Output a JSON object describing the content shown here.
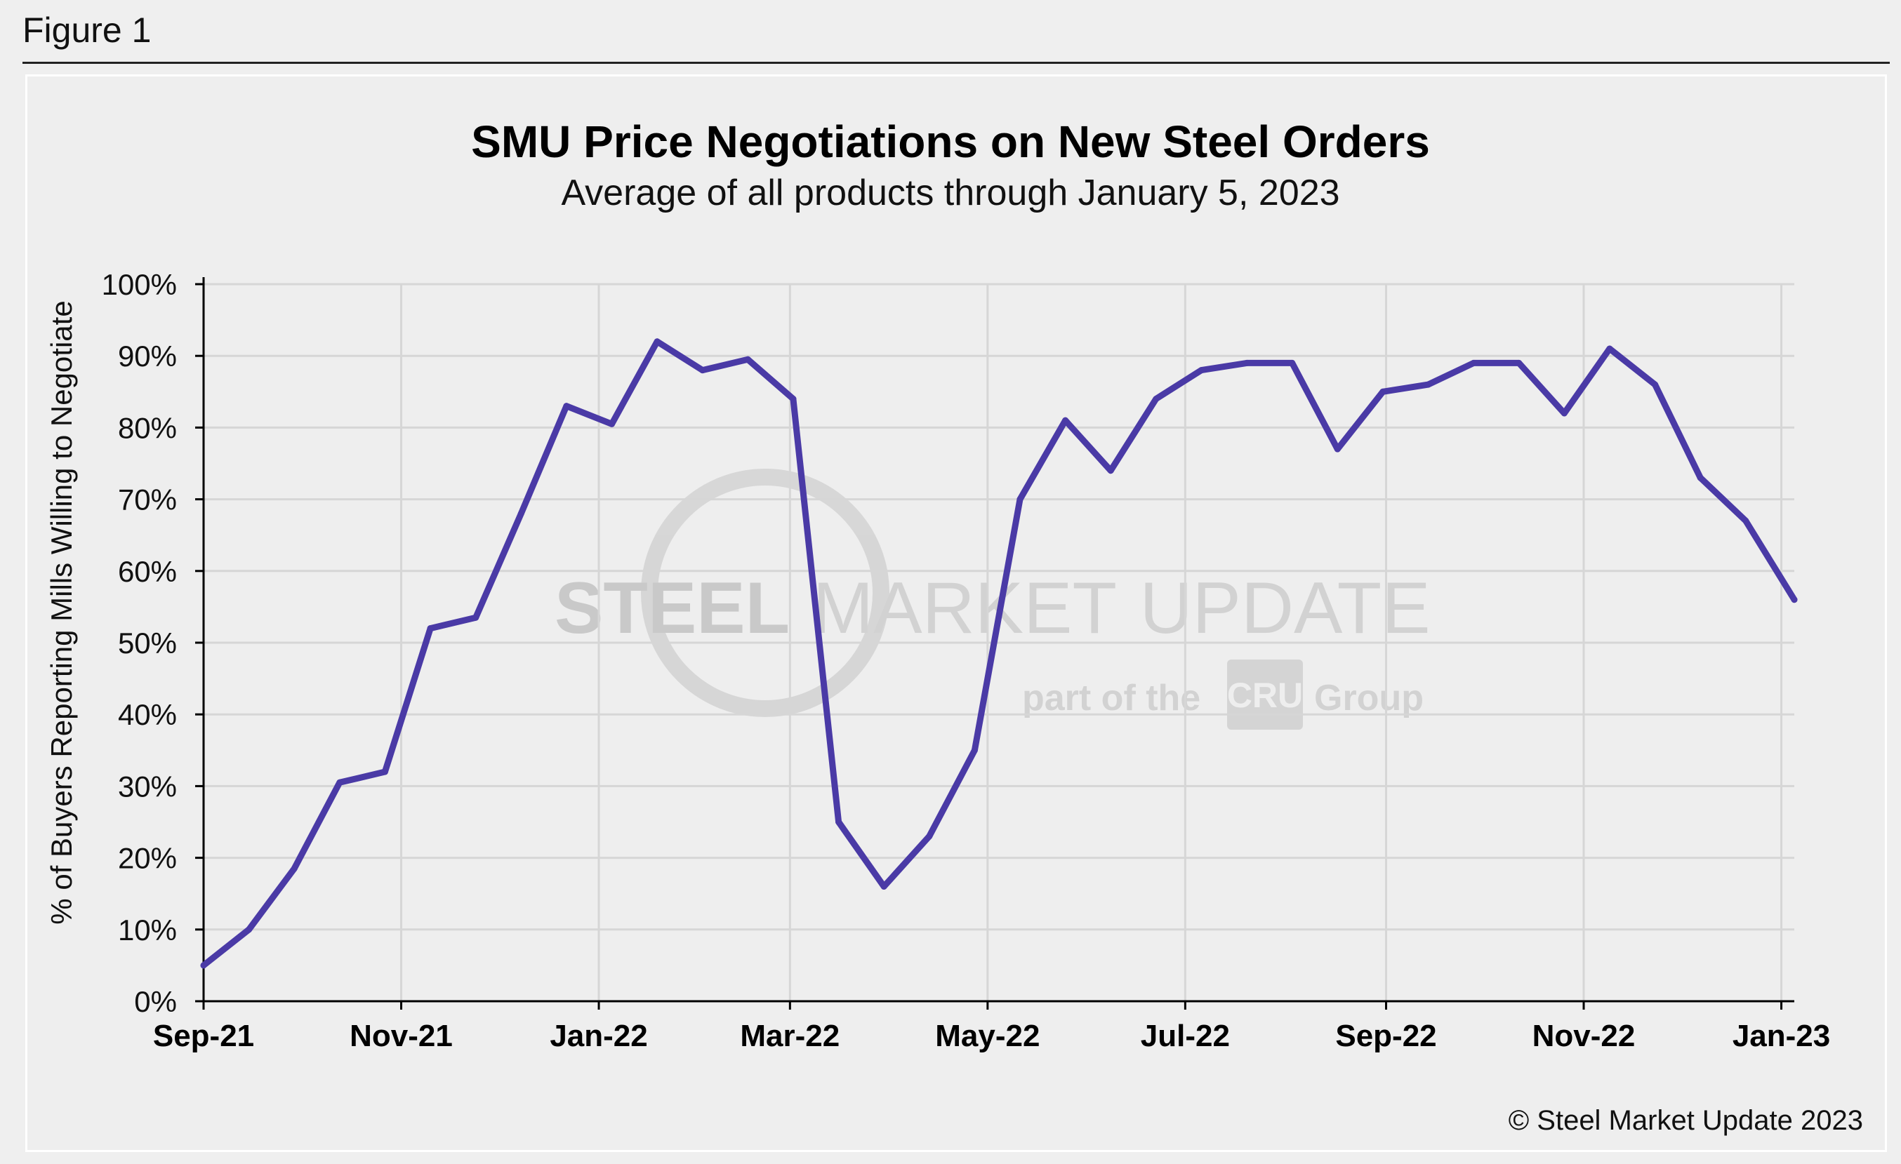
{
  "figure_label": "Figure 1",
  "credit": "© Steel Market Update 2023",
  "watermark": {
    "line1_bold": "STEEL",
    "line1_mid": "MARKET",
    "line1_thin": "UPDATE",
    "line2_pre": "part of the",
    "line2_box": "CRU",
    "line2_post": "Group"
  },
  "colors": {
    "series": "#4a3aa6",
    "grid": "#d6d6d6",
    "axis": "#000000"
  },
  "chart_data": {
    "type": "line",
    "title": "SMU Price Negotiations on New Steel Orders",
    "subtitle": "Average of all products through January 5, 2023",
    "ylabel": "% of Buyers Reporting Mills Willing to Negotiate",
    "xlabel": "",
    "ylim": [
      0,
      100
    ],
    "yticks": [
      "0%",
      "10%",
      "20%",
      "30%",
      "40%",
      "50%",
      "60%",
      "70%",
      "80%",
      "90%",
      "100%"
    ],
    "xlim": [
      "2021-09-01",
      "2023-01-05"
    ],
    "xticks": [
      {
        "date": "2021-09-01",
        "label": "Sep-21"
      },
      {
        "date": "2021-11-01",
        "label": "Nov-21"
      },
      {
        "date": "2022-01-01",
        "label": "Jan-22"
      },
      {
        "date": "2022-03-01",
        "label": "Mar-22"
      },
      {
        "date": "2022-05-01",
        "label": "May-22"
      },
      {
        "date": "2022-07-01",
        "label": "Jul-22"
      },
      {
        "date": "2022-09-01",
        "label": "Sep-22"
      },
      {
        "date": "2022-11-01",
        "label": "Nov-22"
      },
      {
        "date": "2023-01-01",
        "label": "Jan-23"
      }
    ],
    "grid": true,
    "series": [
      {
        "points": [
          {
            "x": "2021-09-01",
            "y": 5
          },
          {
            "x": "2021-09-15",
            "y": 10
          },
          {
            "x": "2021-09-29",
            "y": 18.5
          },
          {
            "x": "2021-10-13",
            "y": 30.5
          },
          {
            "x": "2021-10-27",
            "y": 32
          },
          {
            "x": "2021-11-10",
            "y": 52
          },
          {
            "x": "2021-11-24",
            "y": 53.5
          },
          {
            "x": "2021-12-08",
            "y": 68
          },
          {
            "x": "2021-12-22",
            "y": 83
          },
          {
            "x": "2022-01-05",
            "y": 80.5
          },
          {
            "x": "2022-01-19",
            "y": 92
          },
          {
            "x": "2022-02-02",
            "y": 88
          },
          {
            "x": "2022-02-16",
            "y": 89.5
          },
          {
            "x": "2022-03-02",
            "y": 84
          },
          {
            "x": "2022-03-16",
            "y": 25
          },
          {
            "x": "2022-03-30",
            "y": 16
          },
          {
            "x": "2022-04-13",
            "y": 23
          },
          {
            "x": "2022-04-27",
            "y": 35
          },
          {
            "x": "2022-05-11",
            "y": 70
          },
          {
            "x": "2022-05-25",
            "y": 81
          },
          {
            "x": "2022-06-08",
            "y": 74
          },
          {
            "x": "2022-06-22",
            "y": 84
          },
          {
            "x": "2022-07-06",
            "y": 88
          },
          {
            "x": "2022-07-20",
            "y": 89
          },
          {
            "x": "2022-08-03",
            "y": 89
          },
          {
            "x": "2022-08-17",
            "y": 77
          },
          {
            "x": "2022-08-31",
            "y": 85
          },
          {
            "x": "2022-09-14",
            "y": 86
          },
          {
            "x": "2022-09-28",
            "y": 89
          },
          {
            "x": "2022-10-12",
            "y": 89
          },
          {
            "x": "2022-10-26",
            "y": 82
          },
          {
            "x": "2022-11-09",
            "y": 91
          },
          {
            "x": "2022-11-23",
            "y": 86
          },
          {
            "x": "2022-12-07",
            "y": 73
          },
          {
            "x": "2022-12-21",
            "y": 67
          },
          {
            "x": "2023-01-05",
            "y": 56
          }
        ]
      }
    ]
  }
}
